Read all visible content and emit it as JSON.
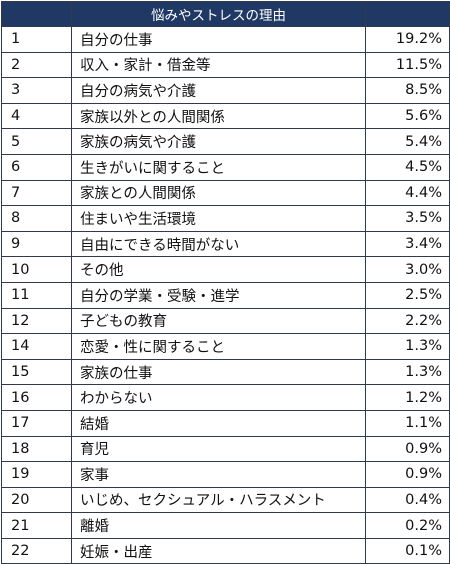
{
  "table": {
    "header": {
      "reason": "悩みやストレスの理由"
    },
    "rows": [
      {
        "rank": "1",
        "reason": "自分の仕事",
        "pct": "19.2%"
      },
      {
        "rank": "2",
        "reason": "収入・家計・借金等",
        "pct": "11.5%"
      },
      {
        "rank": "3",
        "reason": "自分の病気や介護",
        "pct": "8.5%"
      },
      {
        "rank": "4",
        "reason": "家族以外との人間関係",
        "pct": "5.6%"
      },
      {
        "rank": "5",
        "reason": "家族の病気や介護",
        "pct": "5.4%"
      },
      {
        "rank": "6",
        "reason": "生きがいに関すること",
        "pct": "4.5%"
      },
      {
        "rank": "7",
        "reason": "家族との人間関係",
        "pct": "4.4%"
      },
      {
        "rank": "8",
        "reason": "住まいや生活環境",
        "pct": "3.5%"
      },
      {
        "rank": "9",
        "reason": "自由にできる時間がない",
        "pct": "3.4%"
      },
      {
        "rank": "10",
        "reason": "その他",
        "pct": "3.0%"
      },
      {
        "rank": "11",
        "reason": "自分の学業・受験・進学",
        "pct": "2.5%"
      },
      {
        "rank": "12",
        "reason": "子どもの教育",
        "pct": "2.2%"
      },
      {
        "rank": "14",
        "reason": "恋愛・性に関すること",
        "pct": "1.3%"
      },
      {
        "rank": "15",
        "reason": "家族の仕事",
        "pct": "1.3%"
      },
      {
        "rank": "16",
        "reason": "わからない",
        "pct": "1.2%"
      },
      {
        "rank": "17",
        "reason": "結婚",
        "pct": "1.1%"
      },
      {
        "rank": "18",
        "reason": "育児",
        "pct": "0.9%"
      },
      {
        "rank": "19",
        "reason": "家事",
        "pct": "0.9%"
      },
      {
        "rank": "20",
        "reason": "いじめ、セクシュアル・ハラスメント",
        "pct": "0.4%"
      },
      {
        "rank": "21",
        "reason": "離婚",
        "pct": "0.2%"
      },
      {
        "rank": "22",
        "reason": "妊娠・出産",
        "pct": "0.1%"
      }
    ]
  },
  "colors": {
    "header_bg": "#1f3864",
    "header_text": "#ffffff",
    "border": "#2f3b4d"
  }
}
